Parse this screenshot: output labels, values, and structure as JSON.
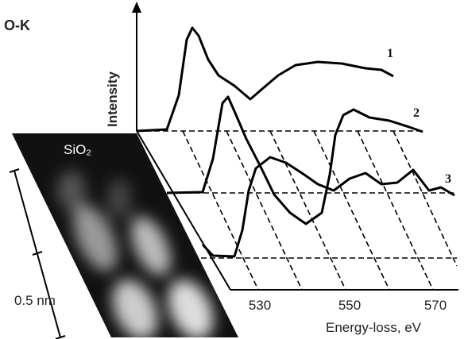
{
  "figure": {
    "edge_label": "O-K",
    "y_axis_label": "Intensity",
    "x_axis_label": "Energy-loss, eV",
    "x_ticks": [
      530,
      550,
      570
    ],
    "curve_labels": [
      "1",
      "2",
      "3"
    ],
    "image_label": "SiO₂",
    "scale_bar_label": "0.5 nm"
  }
}
